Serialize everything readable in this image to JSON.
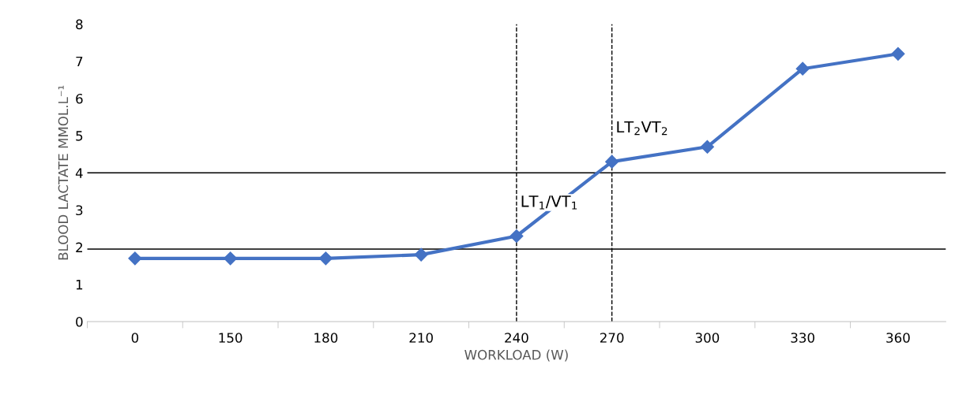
{
  "chart_data": {
    "type": "line",
    "xlabel": "WORKLOAD (W)",
    "ylabel": "BLOOD LACTATE MMOL.L⁻¹",
    "categories": [
      "0",
      "150",
      "180",
      "210",
      "240",
      "270",
      "300",
      "330",
      "360"
    ],
    "series": [
      {
        "color": "#4472c4",
        "values": [
          1.7,
          1.7,
          1.7,
          1.8,
          2.3,
          4.3,
          4.7,
          6.8,
          7.2
        ]
      }
    ],
    "ylim": [
      0,
      8
    ],
    "yticks": [
      0,
      1,
      2,
      3,
      4,
      5,
      6,
      7,
      8
    ],
    "grid": false,
    "legend": false,
    "marker": "diamond",
    "line_style": "solid",
    "ref_lines": [
      {
        "axis": "y",
        "value": 4,
        "color": "#000000",
        "line_style": "solid"
      },
      {
        "axis": "y",
        "value": 1.95,
        "color": "#000000",
        "line_style": "solid"
      },
      {
        "axis": "x",
        "value": "240",
        "color": "#000000",
        "line_style": "dashed"
      },
      {
        "axis": "x",
        "value": "270",
        "color": "#000000",
        "line_style": "dashed"
      }
    ],
    "annotations": [
      {
        "text": "LT$_{1}$/VT$_{1}$",
        "x": "240",
        "y": 3
      },
      {
        "text": "LT$_{2}$VT$_{2}$",
        "x": "270",
        "y": 5
      }
    ]
  }
}
